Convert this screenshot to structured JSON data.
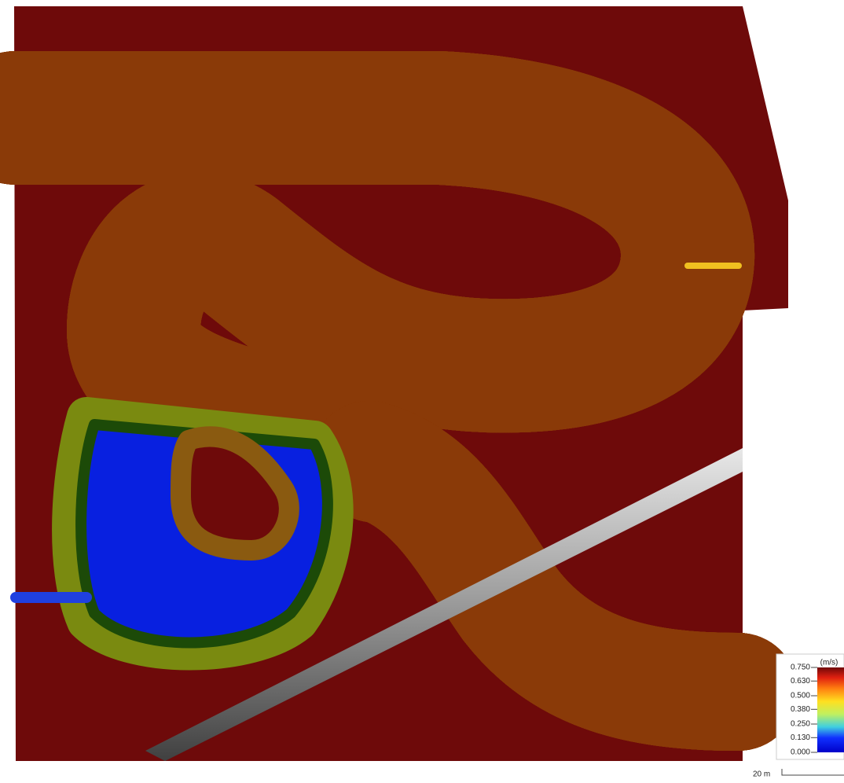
{
  "legend": {
    "unit": "(m/s)",
    "ticks": [
      {
        "value": 0.75,
        "label": "0.750"
      },
      {
        "value": 0.63,
        "label": "0.630"
      },
      {
        "value": 0.5,
        "label": "0.500"
      },
      {
        "value": 0.38,
        "label": "0.380"
      },
      {
        "value": 0.25,
        "label": "0.250"
      },
      {
        "value": 0.13,
        "label": "0.130"
      },
      {
        "value": 0,
        "label": "0.000"
      }
    ]
  },
  "scale_bar": {
    "label": "20 m"
  }
}
